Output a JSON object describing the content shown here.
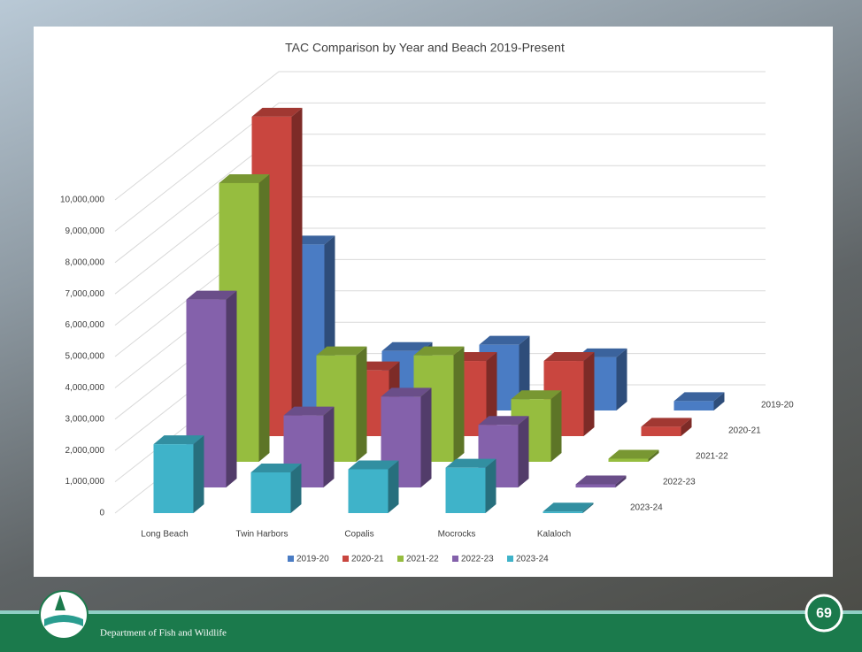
{
  "chart_data": {
    "type": "bar3d",
    "title": "TAC Comparison by Year and Beach 2019-Present",
    "categories": [
      "Long Beach",
      "Twin Harbors",
      "Copalis",
      "Mocrocks",
      "Kalaloch"
    ],
    "series": [
      {
        "name": "2019-20",
        "color": "#4a7cc4",
        "values": [
          5300000,
          1900000,
          2100000,
          1700000,
          300000
        ]
      },
      {
        "name": "2020-21",
        "color": "#c9463f",
        "values": [
          10200000,
          2100000,
          2400000,
          2400000,
          300000
        ]
      },
      {
        "name": "2021-22",
        "color": "#96bd3f",
        "values": [
          8900000,
          3400000,
          3400000,
          2000000,
          100000
        ]
      },
      {
        "name": "2022-23",
        "color": "#8461ab",
        "values": [
          6000000,
          2300000,
          2900000,
          2000000,
          100000
        ]
      },
      {
        "name": "2023-24",
        "color": "#3fb3c9",
        "values": [
          2200000,
          1300000,
          1400000,
          1450000,
          50000
        ]
      }
    ],
    "ylim": [
      0,
      11000000
    ],
    "yticks": [
      0,
      {
        "value": 1000000,
        "label": "1,000,000"
      },
      {
        "value": 2000000,
        "label": "2,000,000"
      },
      {
        "value": 3000000,
        "label": "3,000,000"
      },
      {
        "value": 4000000,
        "label": "4,000,000"
      },
      {
        "value": 5000000,
        "label": "5,000,000"
      },
      {
        "value": 6000000,
        "label": "6,000,000"
      },
      {
        "value": 7000000,
        "label": "7,000,000"
      },
      {
        "value": 8000000,
        "label": "8,000,000"
      },
      {
        "value": 9000000,
        "label": "9,000,000"
      },
      {
        "value": 10000000,
        "label": "10,000,000"
      }
    ],
    "grid": true,
    "legend": "bottom"
  },
  "footer": {
    "agency": "Department of Fish and Wildlife",
    "page_number": "69"
  }
}
